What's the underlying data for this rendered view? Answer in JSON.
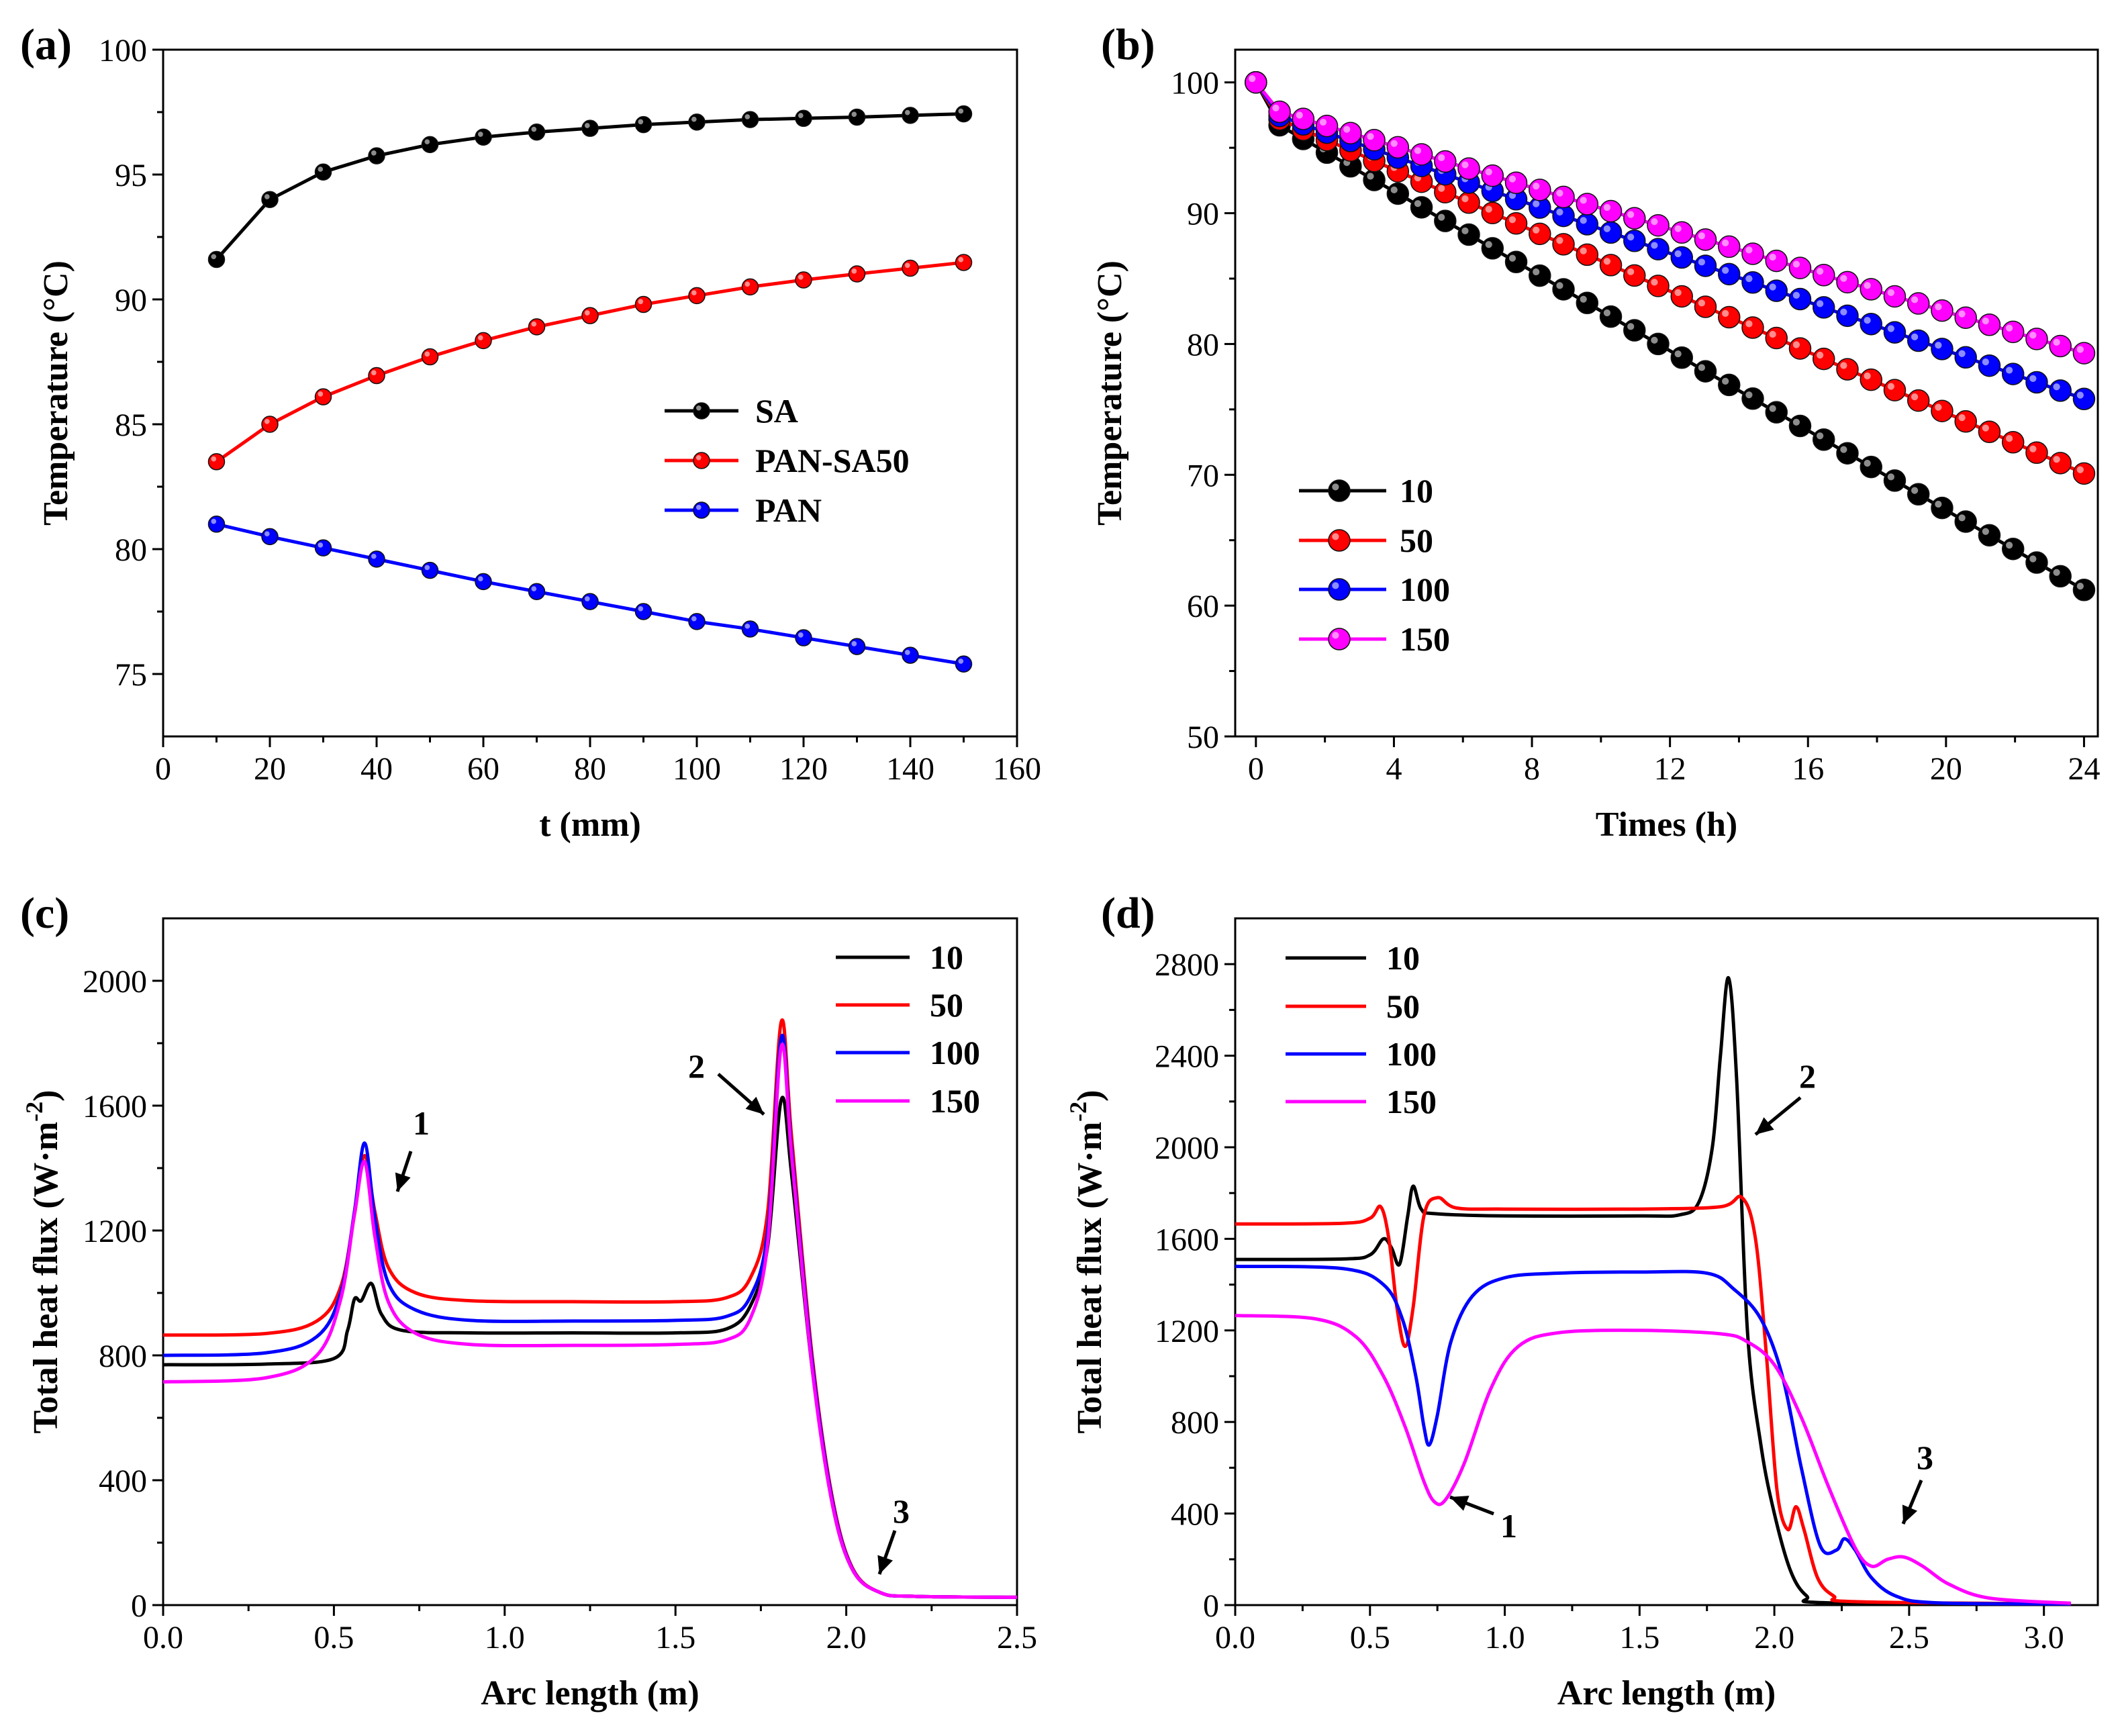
{
  "chart_data": [
    {
      "id": "a",
      "panel_label": "(a)",
      "type": "line",
      "xlabel": "t (mm)",
      "ylabel": "Temperature (°C)",
      "xlim": [
        0,
        160
      ],
      "ylim": [
        72.5,
        100
      ],
      "xticks": [
        0,
        20,
        40,
        60,
        80,
        100,
        120,
        140,
        160
      ],
      "yticks": [
        75,
        80,
        85,
        90,
        95,
        100
      ],
      "legend_position": "center-right",
      "x": [
        10,
        20,
        30,
        40,
        50,
        60,
        70,
        80,
        90,
        100,
        110,
        120,
        130,
        140,
        150
      ],
      "series": [
        {
          "name": "SA",
          "color": "#000000",
          "values": [
            91.6,
            94.0,
            95.1,
            95.75,
            96.2,
            96.5,
            96.7,
            96.85,
            97.0,
            97.1,
            97.2,
            97.25,
            97.3,
            97.37,
            97.43
          ]
        },
        {
          "name": "PAN-SA50",
          "color": "#ff0000",
          "values": [
            83.5,
            85.0,
            86.1,
            86.95,
            87.7,
            88.35,
            88.9,
            89.35,
            89.8,
            90.15,
            90.5,
            90.78,
            91.02,
            91.25,
            91.48
          ]
        },
        {
          "name": "PAN",
          "color": "#0000ff",
          "values": [
            81.0,
            80.5,
            80.05,
            79.6,
            79.15,
            78.7,
            78.3,
            77.9,
            77.5,
            77.1,
            76.8,
            76.45,
            76.1,
            75.75,
            75.4
          ]
        }
      ]
    },
    {
      "id": "b",
      "panel_label": "(b)",
      "type": "line",
      "xlabel": "Times (h)",
      "ylabel": "Temperature (°C)",
      "xlim": [
        -0.6,
        24.4
      ],
      "ylim": [
        50,
        102.5
      ],
      "xticks": [
        0,
        4,
        8,
        12,
        16,
        20,
        24
      ],
      "yticks": [
        50,
        60,
        70,
        80,
        90,
        100
      ],
      "legend_position": "bottom-left",
      "series": [
        {
          "name": "10",
          "color": "#000000",
          "start": 100,
          "knee": 97.0,
          "end": 61.2
        },
        {
          "name": "50",
          "color": "#ff0000",
          "start": 100,
          "knee": 97.4,
          "end": 70.1
        },
        {
          "name": "100",
          "color": "#0000ff",
          "start": 100,
          "knee": 97.6,
          "end": 75.8
        },
        {
          "name": "150",
          "color": "#ff00ff",
          "start": 100,
          "knee": 97.9,
          "end": 79.3
        }
      ]
    },
    {
      "id": "c",
      "panel_label": "(c)",
      "type": "line",
      "xlabel": "Arc length (m)",
      "ylabel": "Total heat flux (W·m",
      "ylabel_exp": "-2",
      "ylabel_close": ")",
      "xlim": [
        0,
        2.5
      ],
      "ylim": [
        0,
        2200
      ],
      "xticks": [
        "0.0",
        "0.5",
        "1.0",
        "1.5",
        "2.0",
        "2.5"
      ],
      "yticks": [
        0,
        400,
        800,
        1200,
        1600,
        2000
      ],
      "legend_position": "top-right",
      "annotations": [
        "1",
        "2",
        "3"
      ],
      "series": [
        {
          "name": "10",
          "color": "#000000",
          "points": [
            [
              0,
              770
            ],
            [
              0.3,
              772
            ],
            [
              0.5,
              790
            ],
            [
              0.54,
              880
            ],
            [
              0.56,
              980
            ],
            [
              0.58,
              975
            ],
            [
              0.61,
              1030
            ],
            [
              0.64,
              930
            ],
            [
              0.7,
              880
            ],
            [
              0.9,
              872
            ],
            [
              1.2,
              872
            ],
            [
              1.5,
              872
            ],
            [
              1.65,
              885
            ],
            [
              1.72,
              960
            ],
            [
              1.77,
              1150
            ],
            [
              1.81,
              1620
            ],
            [
              1.84,
              1380
            ],
            [
              1.9,
              760
            ],
            [
              1.96,
              320
            ],
            [
              2.02,
              110
            ],
            [
              2.1,
              40
            ],
            [
              2.2,
              28
            ],
            [
              2.5,
              25
            ]
          ]
        },
        {
          "name": "50",
          "color": "#ff0000",
          "points": [
            [
              0,
              865
            ],
            [
              0.3,
              870
            ],
            [
              0.45,
              910
            ],
            [
              0.52,
              1020
            ],
            [
              0.56,
              1250
            ],
            [
              0.59,
              1440
            ],
            [
              0.62,
              1260
            ],
            [
              0.66,
              1080
            ],
            [
              0.74,
              1000
            ],
            [
              0.9,
              975
            ],
            [
              1.2,
              972
            ],
            [
              1.5,
              972
            ],
            [
              1.65,
              985
            ],
            [
              1.72,
              1050
            ],
            [
              1.77,
              1260
            ],
            [
              1.81,
              1870
            ],
            [
              1.84,
              1500
            ],
            [
              1.9,
              800
            ],
            [
              1.96,
              340
            ],
            [
              2.02,
              115
            ],
            [
              2.1,
              40
            ],
            [
              2.2,
              28
            ],
            [
              2.5,
              25
            ]
          ]
        },
        {
          "name": "100",
          "color": "#0000ff",
          "points": [
            [
              0,
              800
            ],
            [
              0.3,
              808
            ],
            [
              0.45,
              860
            ],
            [
              0.52,
              1000
            ],
            [
              0.56,
              1260
            ],
            [
              0.59,
              1480
            ],
            [
              0.62,
              1240
            ],
            [
              0.66,
              1030
            ],
            [
              0.74,
              945
            ],
            [
              0.9,
              912
            ],
            [
              1.2,
              910
            ],
            [
              1.5,
              912
            ],
            [
              1.65,
              925
            ],
            [
              1.72,
              990
            ],
            [
              1.77,
              1200
            ],
            [
              1.81,
              1820
            ],
            [
              1.84,
              1460
            ],
            [
              1.9,
              780
            ],
            [
              1.96,
              330
            ],
            [
              2.02,
              112
            ],
            [
              2.1,
              40
            ],
            [
              2.2,
              28
            ],
            [
              2.5,
              25
            ]
          ]
        },
        {
          "name": "150",
          "color": "#ff00ff",
          "points": [
            [
              0,
              715
            ],
            [
              0.3,
              728
            ],
            [
              0.45,
              800
            ],
            [
              0.52,
              980
            ],
            [
              0.56,
              1250
            ],
            [
              0.59,
              1420
            ],
            [
              0.62,
              1180
            ],
            [
              0.66,
              970
            ],
            [
              0.74,
              870
            ],
            [
              0.9,
              835
            ],
            [
              1.2,
              832
            ],
            [
              1.5,
              835
            ],
            [
              1.65,
              850
            ],
            [
              1.72,
              920
            ],
            [
              1.77,
              1160
            ],
            [
              1.81,
              1790
            ],
            [
              1.84,
              1440
            ],
            [
              1.9,
              760
            ],
            [
              1.96,
              320
            ],
            [
              2.02,
              110
            ],
            [
              2.1,
              40
            ],
            [
              2.2,
              28
            ],
            [
              2.5,
              25
            ]
          ]
        }
      ]
    },
    {
      "id": "d",
      "panel_label": "(d)",
      "type": "line",
      "xlabel": "Arc length (m)",
      "ylabel": "Total heat flux (W·m",
      "ylabel_exp": "-2",
      "ylabel_close": ")",
      "xlim": [
        0,
        3.2
      ],
      "ylim": [
        0,
        3000
      ],
      "xticks": [
        "0.0",
        "0.5",
        "1.0",
        "1.5",
        "2.0",
        "2.5",
        "3.0"
      ],
      "yticks": [
        0,
        400,
        800,
        1200,
        1600,
        2000,
        2400,
        2800
      ],
      "legend_position": "top-left",
      "annotations": [
        "1",
        "2",
        "3"
      ],
      "series": [
        {
          "name": "10",
          "color": "#000000",
          "points": [
            [
              0,
              1510
            ],
            [
              0.4,
              1512
            ],
            [
              0.5,
              1530
            ],
            [
              0.55,
              1600
            ],
            [
              0.58,
              1560
            ],
            [
              0.61,
              1490
            ],
            [
              0.64,
              1700
            ],
            [
              0.66,
              1830
            ],
            [
              0.69,
              1730
            ],
            [
              0.74,
              1710
            ],
            [
              1.0,
              1700
            ],
            [
              1.5,
              1700
            ],
            [
              1.65,
              1705
            ],
            [
              1.72,
              1760
            ],
            [
              1.77,
              2000
            ],
            [
              1.8,
              2400
            ],
            [
              1.83,
              2740
            ],
            [
              1.86,
              2300
            ],
            [
              1.9,
              1200
            ],
            [
              1.95,
              700
            ],
            [
              2.0,
              400
            ],
            [
              2.06,
              150
            ],
            [
              2.12,
              40
            ],
            [
              2.2,
              10
            ],
            [
              3.1,
              5
            ]
          ]
        },
        {
          "name": "50",
          "color": "#ff0000",
          "points": [
            [
              0,
              1665
            ],
            [
              0.4,
              1668
            ],
            [
              0.5,
              1690
            ],
            [
              0.54,
              1740
            ],
            [
              0.57,
              1600
            ],
            [
              0.6,
              1300
            ],
            [
              0.63,
              1130
            ],
            [
              0.66,
              1300
            ],
            [
              0.7,
              1700
            ],
            [
              0.75,
              1780
            ],
            [
              0.82,
              1735
            ],
            [
              1.0,
              1730
            ],
            [
              1.5,
              1730
            ],
            [
              1.8,
              1740
            ],
            [
              1.88,
              1780
            ],
            [
              1.93,
              1600
            ],
            [
              1.97,
              1100
            ],
            [
              2.01,
              500
            ],
            [
              2.05,
              330
            ],
            [
              2.08,
              430
            ],
            [
              2.11,
              330
            ],
            [
              2.16,
              120
            ],
            [
              2.22,
              40
            ],
            [
              2.3,
              15
            ],
            [
              3.1,
              5
            ]
          ]
        },
        {
          "name": "100",
          "color": "#0000ff",
          "points": [
            [
              0,
              1480
            ],
            [
              0.4,
              1470
            ],
            [
              0.55,
              1400
            ],
            [
              0.62,
              1250
            ],
            [
              0.67,
              1000
            ],
            [
              0.7,
              780
            ],
            [
              0.72,
              700
            ],
            [
              0.75,
              830
            ],
            [
              0.8,
              1150
            ],
            [
              0.88,
              1350
            ],
            [
              1.0,
              1430
            ],
            [
              1.2,
              1450
            ],
            [
              1.5,
              1455
            ],
            [
              1.75,
              1450
            ],
            [
              1.85,
              1380
            ],
            [
              1.95,
              1250
            ],
            [
              2.03,
              1000
            ],
            [
              2.1,
              600
            ],
            [
              2.17,
              260
            ],
            [
              2.23,
              240
            ],
            [
              2.26,
              290
            ],
            [
              2.3,
              240
            ],
            [
              2.36,
              120
            ],
            [
              2.45,
              40
            ],
            [
              2.6,
              10
            ],
            [
              3.1,
              5
            ]
          ]
        },
        {
          "name": "150",
          "color": "#ff00ff",
          "points": [
            [
              0,
              1265
            ],
            [
              0.3,
              1250
            ],
            [
              0.45,
              1170
            ],
            [
              0.55,
              1000
            ],
            [
              0.63,
              780
            ],
            [
              0.7,
              540
            ],
            [
              0.74,
              450
            ],
            [
              0.78,
              460
            ],
            [
              0.85,
              620
            ],
            [
              0.95,
              950
            ],
            [
              1.05,
              1130
            ],
            [
              1.2,
              1190
            ],
            [
              1.5,
              1200
            ],
            [
              1.8,
              1185
            ],
            [
              1.9,
              1150
            ],
            [
              2.0,
              1050
            ],
            [
              2.1,
              820
            ],
            [
              2.2,
              520
            ],
            [
              2.3,
              250
            ],
            [
              2.36,
              170
            ],
            [
              2.42,
              200
            ],
            [
              2.48,
              210
            ],
            [
              2.55,
              170
            ],
            [
              2.65,
              90
            ],
            [
              2.8,
              30
            ],
            [
              3.1,
              8
            ]
          ]
        }
      ]
    }
  ]
}
